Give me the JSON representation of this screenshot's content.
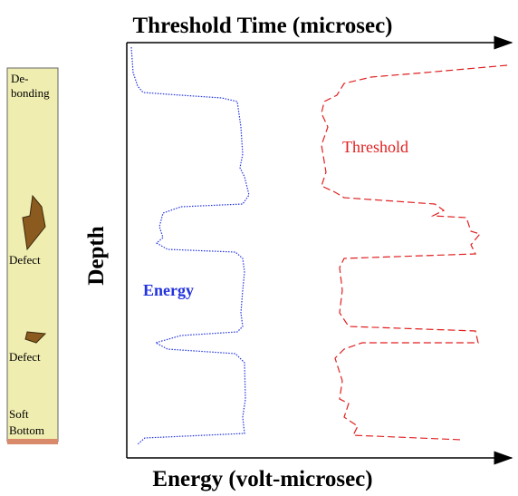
{
  "header": {
    "title": "Threshold Time (microsec)"
  },
  "axes": {
    "x_label": "Energy (volt-microsec)",
    "y_label": "Depth"
  },
  "curves": {
    "energy": "Energy",
    "threshold": "Threshold"
  },
  "column": {
    "labels": [
      "De-",
      "bonding",
      "Defect",
      "Defect",
      "Soft",
      "Bottom"
    ]
  }
}
